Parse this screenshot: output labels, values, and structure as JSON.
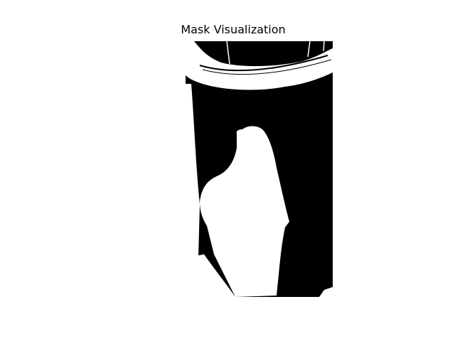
{
  "figure": {
    "title": "Mask Visualization"
  },
  "mask": {
    "foreground_color": "#ffffff",
    "background_color": "#000000"
  }
}
